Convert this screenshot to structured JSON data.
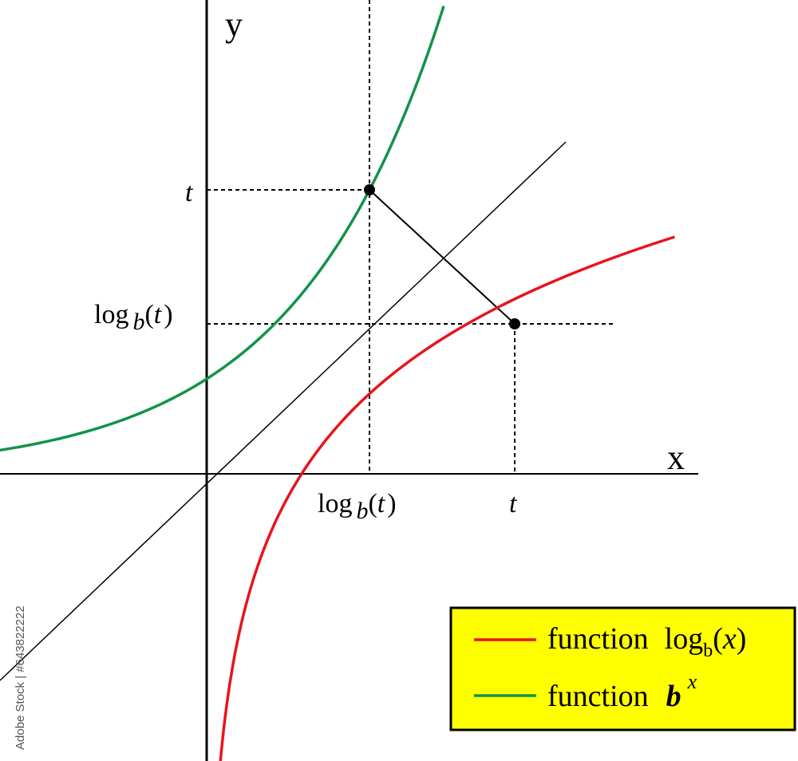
{
  "axes": {
    "x_label": "x",
    "y_label": "y"
  },
  "y_axis_labels": [
    {
      "parts": [
        "t"
      ]
    },
    {
      "parts": [
        "log",
        "b",
        "(",
        "t",
        ")"
      ]
    }
  ],
  "x_axis_labels": [
    {
      "parts": [
        "log",
        "b",
        "(",
        "t",
        ")"
      ]
    },
    {
      "parts": [
        "t"
      ]
    }
  ],
  "legend": {
    "items": [
      {
        "label": "function",
        "expr": [
          "log",
          "b",
          "(",
          "x",
          ")"
        ]
      },
      {
        "label": "function",
        "expr": [
          "b",
          "x"
        ]
      }
    ]
  },
  "watermark": "Adobe Stock | #643822222"
}
